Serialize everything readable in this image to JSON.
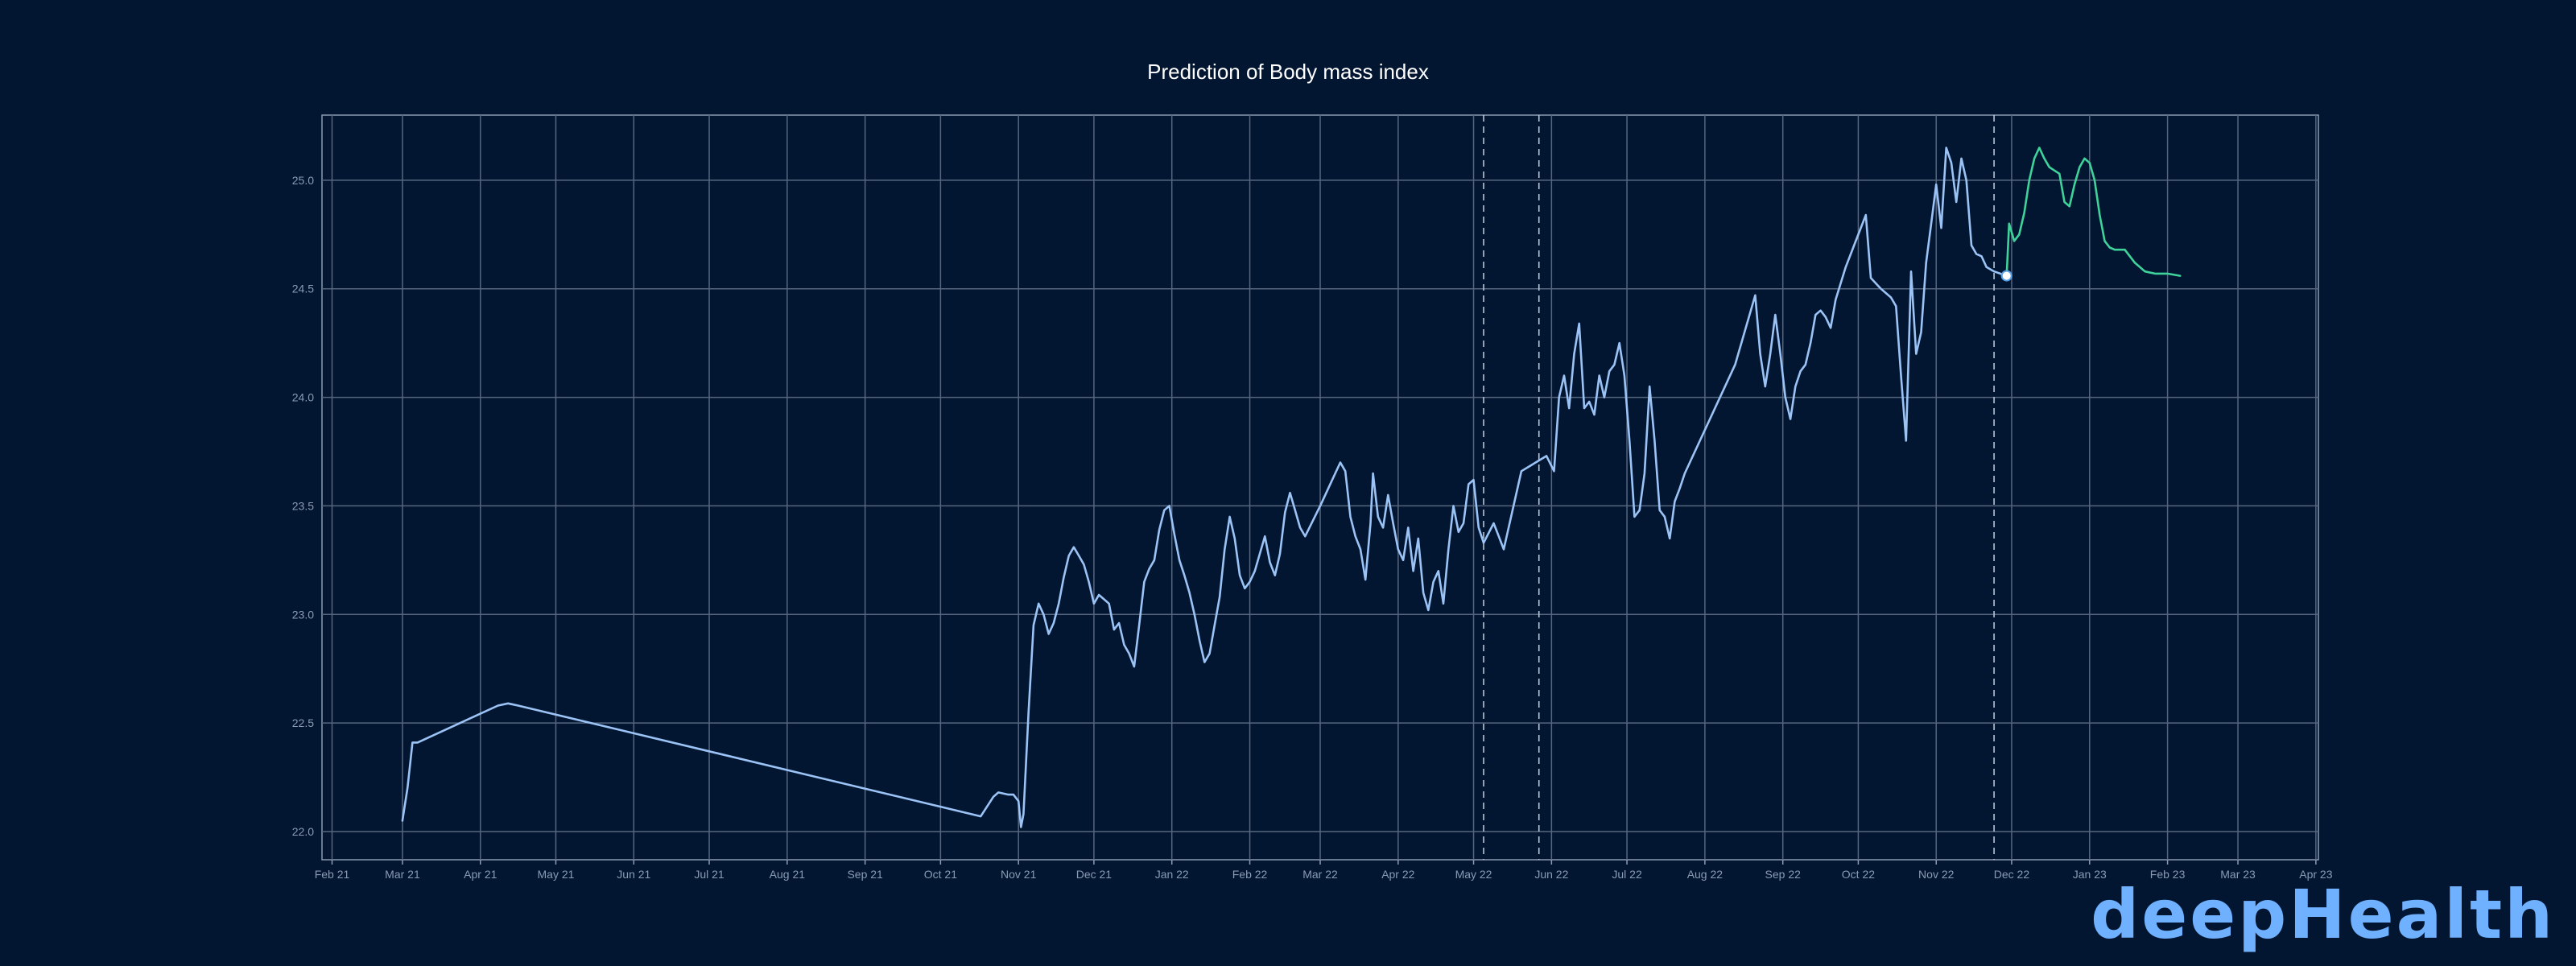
{
  "chart_data": {
    "type": "line",
    "title": "Prediction of Body mass index",
    "xlabel": "",
    "ylabel": "",
    "xlim": [
      "2021-01-28",
      "2023-04-02"
    ],
    "ylim": [
      21.87,
      25.3
    ],
    "grid": true,
    "yticks": [
      22.0,
      22.5,
      23.0,
      23.5,
      24.0,
      24.5,
      25.0
    ],
    "xticks": [
      {
        "date": "2021-02-01",
        "label": "Feb 21"
      },
      {
        "date": "2021-03-01",
        "label": "Mar 21"
      },
      {
        "date": "2021-04-01",
        "label": "Apr 21"
      },
      {
        "date": "2021-05-01",
        "label": "May 21"
      },
      {
        "date": "2021-06-01",
        "label": "Jun 21"
      },
      {
        "date": "2021-07-01",
        "label": "Jul 21"
      },
      {
        "date": "2021-08-01",
        "label": "Aug 21"
      },
      {
        "date": "2021-09-01",
        "label": "Sep 21"
      },
      {
        "date": "2021-10-01",
        "label": "Oct 21"
      },
      {
        "date": "2021-11-01",
        "label": "Nov 21"
      },
      {
        "date": "2021-12-01",
        "label": "Dec 21"
      },
      {
        "date": "2022-01-01",
        "label": "Jan 22"
      },
      {
        "date": "2022-02-01",
        "label": "Feb 22"
      },
      {
        "date": "2022-03-01",
        "label": "Mar 22"
      },
      {
        "date": "2022-04-01",
        "label": "Apr 22"
      },
      {
        "date": "2022-05-01",
        "label": "May 22"
      },
      {
        "date": "2022-06-01",
        "label": "Jun 22"
      },
      {
        "date": "2022-07-01",
        "label": "Jul 22"
      },
      {
        "date": "2022-08-01",
        "label": "Aug 22"
      },
      {
        "date": "2022-09-01",
        "label": "Sep 22"
      },
      {
        "date": "2022-10-01",
        "label": "Oct 22"
      },
      {
        "date": "2022-11-01",
        "label": "Nov 22"
      },
      {
        "date": "2022-12-01",
        "label": "Dec 22"
      },
      {
        "date": "2023-01-01",
        "label": "Jan 23"
      },
      {
        "date": "2023-02-01",
        "label": "Feb 23"
      },
      {
        "date": "2023-03-01",
        "label": "Mar 23"
      },
      {
        "date": "2023-04-01",
        "label": "Apr 23"
      }
    ],
    "vlines": [
      "2022-05-05",
      "2022-05-27",
      "2022-11-24"
    ],
    "marker": {
      "date": "2022-11-29",
      "value": 24.56
    },
    "series": [
      {
        "role": "history",
        "color": "#9cc3f5",
        "points": [
          [
            "2021-03-01",
            22.05
          ],
          [
            "2021-03-03",
            22.2
          ],
          [
            "2021-03-05",
            22.41
          ],
          [
            "2021-03-07",
            22.41
          ],
          [
            "2021-04-08",
            22.58
          ],
          [
            "2021-04-12",
            22.59
          ],
          [
            "2021-04-16",
            22.58
          ],
          [
            "2021-10-17",
            22.07
          ],
          [
            "2021-10-22",
            22.16
          ],
          [
            "2021-10-24",
            22.18
          ],
          [
            "2021-10-28",
            22.17
          ],
          [
            "2021-10-30",
            22.17
          ],
          [
            "2021-11-01",
            22.14
          ],
          [
            "2021-11-02",
            22.02
          ],
          [
            "2021-11-03",
            22.08
          ],
          [
            "2021-11-05",
            22.55
          ],
          [
            "2021-11-07",
            22.95
          ],
          [
            "2021-11-09",
            23.05
          ],
          [
            "2021-11-11",
            23.0
          ],
          [
            "2021-11-13",
            22.91
          ],
          [
            "2021-11-15",
            22.96
          ],
          [
            "2021-11-17",
            23.05
          ],
          [
            "2021-11-19",
            23.17
          ],
          [
            "2021-11-21",
            23.27
          ],
          [
            "2021-11-23",
            23.31
          ],
          [
            "2021-11-25",
            23.27
          ],
          [
            "2021-11-27",
            23.23
          ],
          [
            "2021-11-29",
            23.15
          ],
          [
            "2021-12-01",
            23.05
          ],
          [
            "2021-12-03",
            23.09
          ],
          [
            "2021-12-05",
            23.07
          ],
          [
            "2021-12-07",
            23.05
          ],
          [
            "2021-12-09",
            22.93
          ],
          [
            "2021-12-11",
            22.96
          ],
          [
            "2021-12-13",
            22.86
          ],
          [
            "2021-12-15",
            22.82
          ],
          [
            "2021-12-17",
            22.76
          ],
          [
            "2021-12-19",
            22.95
          ],
          [
            "2021-12-21",
            23.15
          ],
          [
            "2021-12-23",
            23.21
          ],
          [
            "2021-12-25",
            23.25
          ],
          [
            "2021-12-27",
            23.39
          ],
          [
            "2021-12-29",
            23.48
          ],
          [
            "2021-12-31",
            23.5
          ],
          [
            "2022-01-02",
            23.37
          ],
          [
            "2022-01-04",
            23.25
          ],
          [
            "2022-01-06",
            23.18
          ],
          [
            "2022-01-08",
            23.1
          ],
          [
            "2022-01-10",
            23.0
          ],
          [
            "2022-01-12",
            22.88
          ],
          [
            "2022-01-14",
            22.78
          ],
          [
            "2022-01-16",
            22.82
          ],
          [
            "2022-01-18",
            22.95
          ],
          [
            "2022-01-20",
            23.08
          ],
          [
            "2022-01-22",
            23.3
          ],
          [
            "2022-01-24",
            23.45
          ],
          [
            "2022-01-26",
            23.35
          ],
          [
            "2022-01-28",
            23.18
          ],
          [
            "2022-01-30",
            23.12
          ],
          [
            "2022-02-01",
            23.15
          ],
          [
            "2022-02-03",
            23.2
          ],
          [
            "2022-02-05",
            23.28
          ],
          [
            "2022-02-07",
            23.36
          ],
          [
            "2022-02-09",
            23.24
          ],
          [
            "2022-02-11",
            23.18
          ],
          [
            "2022-02-13",
            23.28
          ],
          [
            "2022-02-15",
            23.47
          ],
          [
            "2022-02-17",
            23.56
          ],
          [
            "2022-02-19",
            23.48
          ],
          [
            "2022-02-21",
            23.4
          ],
          [
            "2022-02-23",
            23.36
          ],
          [
            "2022-03-01",
            23.5
          ],
          [
            "2022-03-07",
            23.65
          ],
          [
            "2022-03-09",
            23.7
          ],
          [
            "2022-03-11",
            23.66
          ],
          [
            "2022-03-13",
            23.45
          ],
          [
            "2022-03-15",
            23.36
          ],
          [
            "2022-03-17",
            23.3
          ],
          [
            "2022-03-19",
            23.16
          ],
          [
            "2022-03-21",
            23.42
          ],
          [
            "2022-03-22",
            23.65
          ],
          [
            "2022-03-24",
            23.45
          ],
          [
            "2022-03-26",
            23.4
          ],
          [
            "2022-03-28",
            23.55
          ],
          [
            "2022-03-30",
            23.42
          ],
          [
            "2022-04-01",
            23.3
          ],
          [
            "2022-04-03",
            23.25
          ],
          [
            "2022-04-05",
            23.4
          ],
          [
            "2022-04-07",
            23.2
          ],
          [
            "2022-04-09",
            23.35
          ],
          [
            "2022-04-11",
            23.1
          ],
          [
            "2022-04-13",
            23.02
          ],
          [
            "2022-04-15",
            23.15
          ],
          [
            "2022-04-17",
            23.2
          ],
          [
            "2022-04-19",
            23.05
          ],
          [
            "2022-04-21",
            23.3
          ],
          [
            "2022-04-23",
            23.5
          ],
          [
            "2022-04-25",
            23.38
          ],
          [
            "2022-04-27",
            23.42
          ],
          [
            "2022-04-29",
            23.6
          ],
          [
            "2022-05-01",
            23.62
          ],
          [
            "2022-05-03",
            23.4
          ],
          [
            "2022-05-05",
            23.33
          ],
          [
            "2022-05-09",
            23.42
          ],
          [
            "2022-05-11",
            23.36
          ],
          [
            "2022-05-13",
            23.3
          ],
          [
            "2022-05-20",
            23.66
          ],
          [
            "2022-05-30",
            23.73
          ],
          [
            "2022-06-02",
            23.66
          ],
          [
            "2022-06-04",
            24.0
          ],
          [
            "2022-06-06",
            24.1
          ],
          [
            "2022-06-08",
            23.95
          ],
          [
            "2022-06-10",
            24.2
          ],
          [
            "2022-06-12",
            24.34
          ],
          [
            "2022-06-14",
            23.95
          ],
          [
            "2022-06-16",
            23.98
          ],
          [
            "2022-06-18",
            23.92
          ],
          [
            "2022-06-20",
            24.1
          ],
          [
            "2022-06-22",
            24.0
          ],
          [
            "2022-06-24",
            24.12
          ],
          [
            "2022-06-26",
            24.15
          ],
          [
            "2022-06-28",
            24.25
          ],
          [
            "2022-06-30",
            24.1
          ],
          [
            "2022-07-02",
            23.8
          ],
          [
            "2022-07-04",
            23.45
          ],
          [
            "2022-07-06",
            23.48
          ],
          [
            "2022-07-08",
            23.65
          ],
          [
            "2022-07-10",
            24.05
          ],
          [
            "2022-07-12",
            23.8
          ],
          [
            "2022-07-14",
            23.48
          ],
          [
            "2022-07-16",
            23.45
          ],
          [
            "2022-07-18",
            23.35
          ],
          [
            "2022-07-20",
            23.52
          ],
          [
            "2022-07-22",
            23.58
          ],
          [
            "2022-07-24",
            23.65
          ],
          [
            "2022-08-13",
            24.15
          ],
          [
            "2022-08-21",
            24.47
          ],
          [
            "2022-08-23",
            24.2
          ],
          [
            "2022-08-25",
            24.05
          ],
          [
            "2022-08-27",
            24.2
          ],
          [
            "2022-08-29",
            24.38
          ],
          [
            "2022-08-31",
            24.2
          ],
          [
            "2022-09-02",
            24.0
          ],
          [
            "2022-09-04",
            23.9
          ],
          [
            "2022-09-06",
            24.05
          ],
          [
            "2022-09-08",
            24.12
          ],
          [
            "2022-09-10",
            24.15
          ],
          [
            "2022-09-12",
            24.25
          ],
          [
            "2022-09-14",
            24.38
          ],
          [
            "2022-09-16",
            24.4
          ],
          [
            "2022-09-18",
            24.37
          ],
          [
            "2022-09-20",
            24.32
          ],
          [
            "2022-09-22",
            24.45
          ],
          [
            "2022-09-26",
            24.6
          ],
          [
            "2022-09-30",
            24.72
          ],
          [
            "2022-10-04",
            24.84
          ],
          [
            "2022-10-06",
            24.55
          ],
          [
            "2022-10-10",
            24.5
          ],
          [
            "2022-10-14",
            24.46
          ],
          [
            "2022-10-16",
            24.42
          ],
          [
            "2022-10-18",
            24.1
          ],
          [
            "2022-10-20",
            23.8
          ],
          [
            "2022-10-22",
            24.58
          ],
          [
            "2022-10-24",
            24.2
          ],
          [
            "2022-10-26",
            24.3
          ],
          [
            "2022-10-28",
            24.62
          ],
          [
            "2022-10-30",
            24.8
          ],
          [
            "2022-11-01",
            24.98
          ],
          [
            "2022-11-03",
            24.78
          ],
          [
            "2022-11-05",
            25.15
          ],
          [
            "2022-11-07",
            25.08
          ],
          [
            "2022-11-09",
            24.9
          ],
          [
            "2022-11-11",
            25.1
          ],
          [
            "2022-11-13",
            25.0
          ],
          [
            "2022-11-15",
            24.7
          ],
          [
            "2022-11-17",
            24.66
          ],
          [
            "2022-11-19",
            24.65
          ],
          [
            "2022-11-21",
            24.6
          ],
          [
            "2022-11-24",
            24.58
          ],
          [
            "2022-11-29",
            24.56
          ]
        ]
      },
      {
        "role": "prediction",
        "color": "#3fd39b",
        "points": [
          [
            "2022-11-29",
            24.56
          ],
          [
            "2022-11-30",
            24.8
          ],
          [
            "2022-12-02",
            24.72
          ],
          [
            "2022-12-04",
            24.75
          ],
          [
            "2022-12-06",
            24.85
          ],
          [
            "2022-12-08",
            25.0
          ],
          [
            "2022-12-10",
            25.1
          ],
          [
            "2022-12-12",
            25.15
          ],
          [
            "2022-12-14",
            25.1
          ],
          [
            "2022-12-16",
            25.06
          ],
          [
            "2022-12-20",
            25.03
          ],
          [
            "2022-12-22",
            24.9
          ],
          [
            "2022-12-24",
            24.88
          ],
          [
            "2022-12-26",
            24.98
          ],
          [
            "2022-12-28",
            25.06
          ],
          [
            "2022-12-30",
            25.1
          ],
          [
            "2023-01-01",
            25.08
          ],
          [
            "2023-01-03",
            25.0
          ],
          [
            "2023-01-05",
            24.84
          ],
          [
            "2023-01-07",
            24.72
          ],
          [
            "2023-01-09",
            24.69
          ],
          [
            "2023-01-11",
            24.68
          ],
          [
            "2023-01-13",
            24.68
          ],
          [
            "2023-01-15",
            24.68
          ],
          [
            "2023-01-19",
            24.62
          ],
          [
            "2023-01-23",
            24.58
          ],
          [
            "2023-01-27",
            24.57
          ],
          [
            "2023-02-01",
            24.57
          ],
          [
            "2023-02-06",
            24.56
          ]
        ]
      }
    ]
  },
  "branding": {
    "logo_text": "deepHealth"
  }
}
